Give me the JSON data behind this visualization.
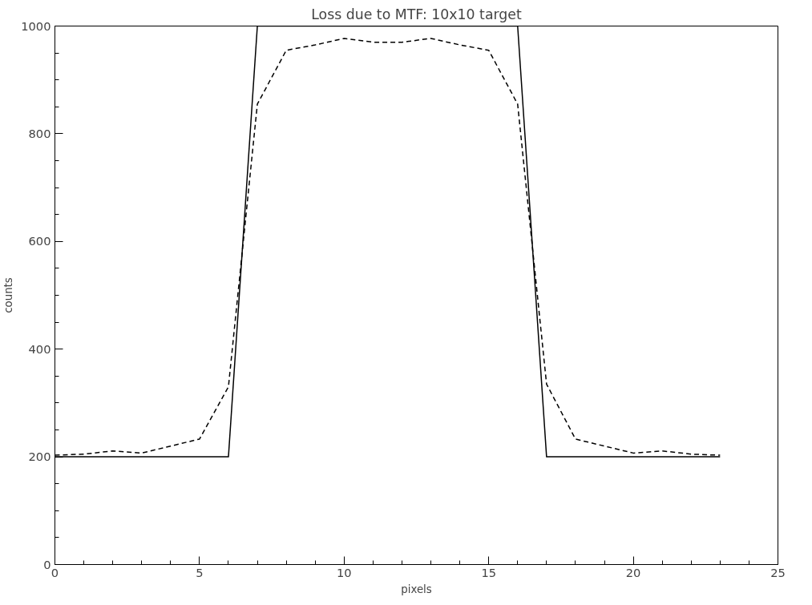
{
  "chart_data": {
    "type": "line",
    "title": "Loss due to MTF: 10x10 target",
    "xlabel": "pixels",
    "ylabel": "counts",
    "x": [
      0,
      1,
      2,
      3,
      4,
      5,
      6,
      7,
      8,
      9,
      10,
      11,
      12,
      13,
      14,
      15,
      16,
      17,
      18,
      19,
      20,
      21,
      22,
      23
    ],
    "series": [
      {
        "color": "#000000",
        "line_style": "solid",
        "values": [
          200,
          200,
          200,
          200,
          200,
          200,
          200,
          1000,
          1000,
          1000,
          1000,
          1000,
          1000,
          1000,
          1000,
          1000,
          1000,
          200,
          200,
          200,
          200,
          200,
          200,
          200
        ]
      },
      {
        "color": "#000000",
        "line_style": "dashed",
        "values": [
          203,
          205,
          211,
          207,
          220,
          233,
          330,
          855,
          955,
          965,
          977,
          970,
          970,
          977,
          965,
          955,
          855,
          335,
          233,
          220,
          207,
          211,
          205,
          203
        ]
      }
    ],
    "xlim": [
      0,
      25
    ],
    "ylim": [
      0,
      1000
    ],
    "xticks": [
      0,
      5,
      10,
      15,
      20,
      25
    ],
    "yticks": [
      0,
      200,
      400,
      600,
      800,
      1000
    ],
    "grid": false,
    "marker": "none"
  }
}
